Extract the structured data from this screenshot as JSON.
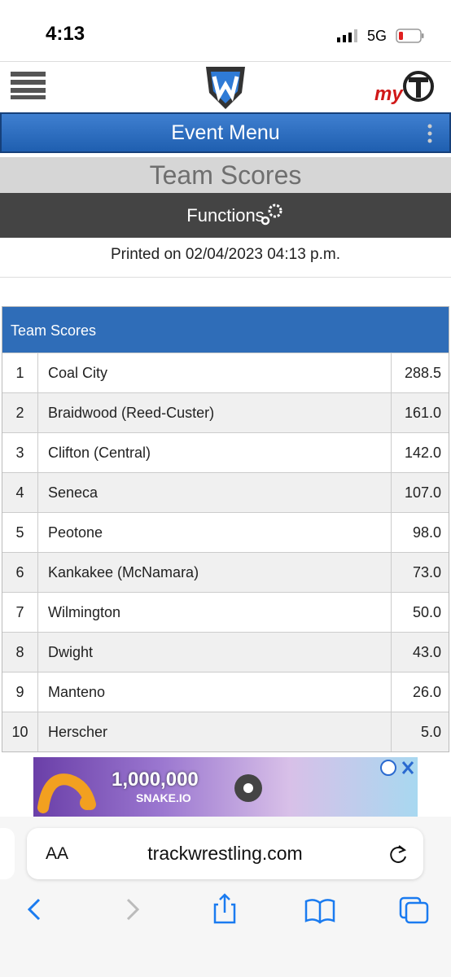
{
  "status_bar": {
    "time": "4:13",
    "network": "5G"
  },
  "header": {
    "logo_text": "my",
    "menu": "Event Menu",
    "page_title": "Team Scores",
    "functions": "Functions",
    "printed": "Printed on 02/04/2023 04:13 p.m."
  },
  "table": {
    "title": "Team Scores",
    "rows": [
      [
        "1",
        "Coal City",
        "288.5"
      ],
      [
        "2",
        "Braidwood (Reed-Custer)",
        "161.0"
      ],
      [
        "3",
        "Clifton (Central)",
        "142.0"
      ],
      [
        "4",
        "Seneca",
        "107.0"
      ],
      [
        "5",
        "Peotone",
        "98.0"
      ],
      [
        "6",
        "Kankakee (McNamara)",
        "73.0"
      ],
      [
        "7",
        "Wilmington",
        "50.0"
      ],
      [
        "8",
        "Dwight",
        "43.0"
      ],
      [
        "9",
        "Manteno",
        "26.0"
      ],
      [
        "10",
        "Herscher",
        "5.0"
      ]
    ]
  },
  "ad": {
    "amount": "1,000,000",
    "game": "SNAKE.IO"
  },
  "browser": {
    "text_size": "AA",
    "url": "trackwrestling.com"
  }
}
